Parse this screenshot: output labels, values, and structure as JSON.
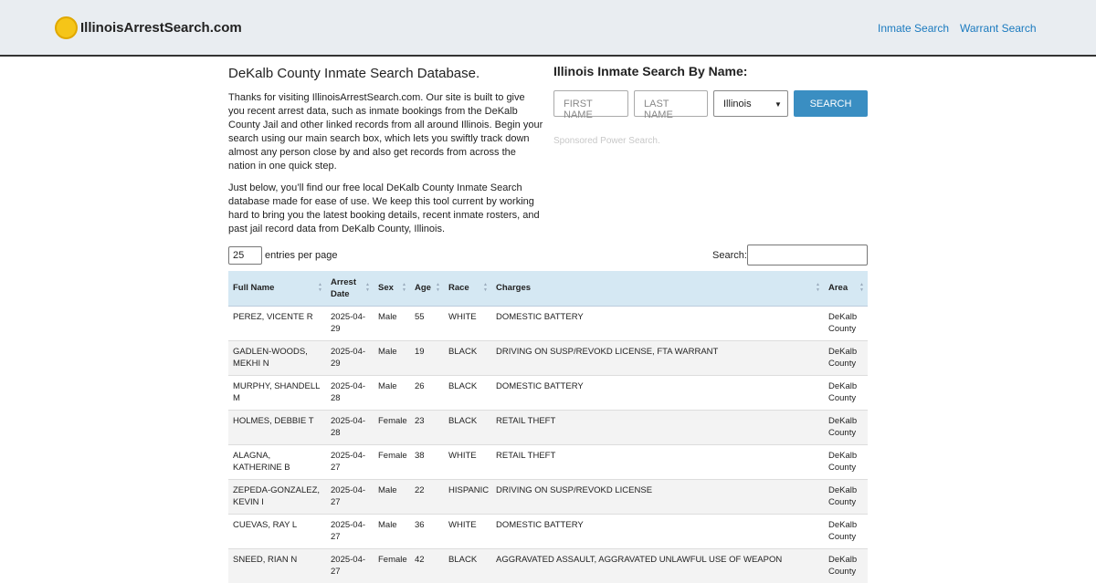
{
  "header": {
    "logo": "IllinoisArrestSearch.com",
    "nav": [
      "Inmate Search",
      "Warrant Search"
    ]
  },
  "intro": {
    "title": "DeKalb County Inmate Search Database.",
    "paragraphs": [
      "Thanks for visiting IllinoisArrestSearch.com. Our site is built to give you recent arrest data, such as inmate bookings from the DeKalb County Jail and other linked records from all around Illinois. Begin your search using our main search box, which lets you swiftly track down almost any person close by and also get records from across the nation in one quick step.",
      "Just below, you’ll find our free local DeKalb County Inmate Search database made for ease of use. We keep this tool current by working hard to bring you the latest booking details, recent inmate rosters, and past jail record data from DeKalb County, Illinois."
    ]
  },
  "search_form": {
    "title": "Illinois Inmate Search By Name:",
    "first_name": "FIRST NAME",
    "last_name": "LAST NAME",
    "state": "Illinois",
    "button": "SEARCH",
    "sponsored": "Sponsored Power Search."
  },
  "table_controls": {
    "page_size": "25",
    "page_size_label": "entries per page",
    "search_label": "Search:"
  },
  "table": {
    "columns": [
      "Full Name",
      "Arrest Date",
      "Sex",
      "Age",
      "Race",
      "Charges",
      "Area"
    ],
    "rows": [
      [
        "PEREZ, VICENTE R",
        "2025-04-29",
        "Male",
        55,
        "WHITE",
        "DOMESTIC BATTERY",
        "DeKalb County"
      ],
      [
        "GADLEN-WOODS, MEKHI N",
        "2025-04-29",
        "Male",
        19,
        "BLACK",
        "DRIVING ON SUSP/REVOKD LICENSE, FTA WARRANT",
        "DeKalb County"
      ],
      [
        "MURPHY, SHANDELL M",
        "2025-04-28",
        "Male",
        26,
        "BLACK",
        "DOMESTIC BATTERY",
        "DeKalb County"
      ],
      [
        "HOLMES, DEBBIE T",
        "2025-04-28",
        "Female",
        23,
        "BLACK",
        "RETAIL THEFT",
        "DeKalb County"
      ],
      [
        "ALAGNA, KATHERINE B",
        "2025-04-27",
        "Female",
        38,
        "WHITE",
        "RETAIL THEFT",
        "DeKalb County"
      ],
      [
        "ZEPEDA-GONZALEZ, KEVIN I",
        "2025-04-27",
        "Male",
        22,
        "HISPANIC",
        "DRIVING ON SUSP/REVOKD LICENSE",
        "DeKalb County"
      ],
      [
        "CUEVAS, RAY L",
        "2025-04-27",
        "Male",
        36,
        "WHITE",
        "DOMESTIC BATTERY",
        "DeKalb County"
      ],
      [
        "SNEED, RIAN N",
        "2025-04-27",
        "Female",
        42,
        "BLACK",
        "AGGRAVATED ASSAULT, AGGRAVATED UNLAWFUL USE OF WEAPON",
        "DeKalb County"
      ]
    ]
  }
}
